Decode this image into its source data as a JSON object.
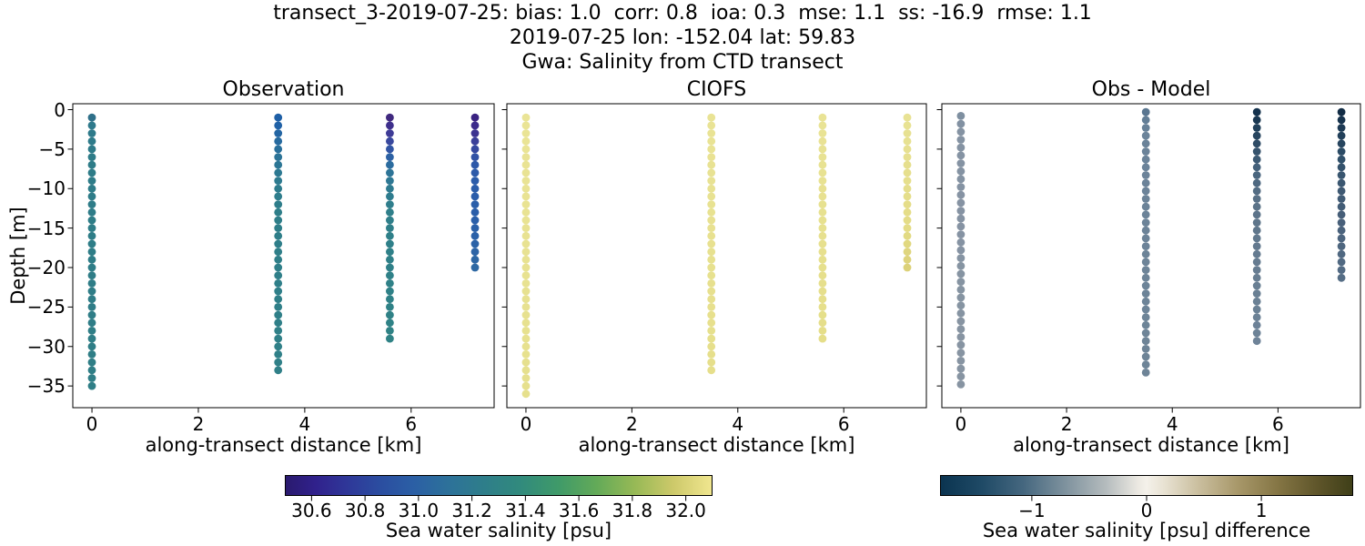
{
  "header": {
    "line1": "transect_3-2019-07-25: bias: 1.0  corr: 0.8  ioa: 0.3  mse: 1.1  ss: -16.9  rmse: 1.1",
    "line2": "2019-07-25 lon: -152.04 lat: 59.83",
    "line3": "Gwa: Salinity from CTD transect"
  },
  "axes": {
    "ylabel": "Depth [m]",
    "x_ticks": [
      0,
      2,
      4,
      6
    ],
    "x_tick_labels": [
      "0",
      "2",
      "4",
      "6"
    ],
    "y_ticks": [
      0,
      -5,
      -10,
      -15,
      -20,
      -25,
      -30,
      -35
    ],
    "y_tick_labels": [
      "0",
      "−5",
      "−10",
      "−15",
      "−20",
      "−25",
      "−30",
      "−35"
    ],
    "xlim": [
      -0.36,
      7.56
    ],
    "ylim": [
      0.75,
      -37.75
    ]
  },
  "chart_data": [
    {
      "type": "scatter",
      "title": "Observation",
      "xlabel": "along-transect distance [km]",
      "ylabel": "Depth [m]",
      "units": "psu",
      "point_spacing_m": 1,
      "profiles": [
        {
          "x_km": 0.0,
          "top_depth": -1,
          "bottom_depth": -35,
          "stops": [
            {
              "d": -1,
              "v": 31.15,
              "c": "#2f7089"
            },
            {
              "d": -2,
              "v": 31.2,
              "c": "#2e798b"
            },
            {
              "d": -6,
              "v": 31.25,
              "c": "#2e7c88"
            },
            {
              "d": -35,
              "v": 31.26,
              "c": "#2f7e86"
            }
          ]
        },
        {
          "x_km": 3.5,
          "top_depth": -1,
          "bottom_depth": -33,
          "stops": [
            {
              "d": -1,
              "v": 31.0,
              "c": "#1e5fa6"
            },
            {
              "d": -2,
              "v": 31.02,
              "c": "#2061a6"
            },
            {
              "d": -3,
              "v": 31.05,
              "c": "#2365a3"
            },
            {
              "d": -4,
              "v": 31.08,
              "c": "#276a9f"
            },
            {
              "d": -5,
              "v": 31.1,
              "c": "#296f9b"
            },
            {
              "d": -6,
              "v": 31.12,
              "c": "#2b7397"
            },
            {
              "d": -8,
              "v": 31.17,
              "c": "#2d7992"
            },
            {
              "d": -10,
              "v": 31.2,
              "c": "#2e7c8d"
            },
            {
              "d": -13,
              "v": 31.22,
              "c": "#2e7e89"
            },
            {
              "d": -33,
              "v": 31.25,
              "c": "#308088"
            }
          ]
        },
        {
          "x_km": 5.6,
          "top_depth": -1,
          "bottom_depth": -29,
          "stops": [
            {
              "d": -1,
              "v": 30.58,
              "c": "#40297f"
            },
            {
              "d": -2,
              "v": 30.62,
              "c": "#3e2f8c"
            },
            {
              "d": -3,
              "v": 30.67,
              "c": "#3e3b96"
            },
            {
              "d": -4,
              "v": 30.73,
              "c": "#39489e"
            },
            {
              "d": -5,
              "v": 30.8,
              "c": "#3155a4"
            },
            {
              "d": -6,
              "v": 30.88,
              "c": "#2c61a4"
            },
            {
              "d": -7,
              "v": 30.98,
              "c": "#2b6c9f"
            },
            {
              "d": -8,
              "v": 31.05,
              "c": "#2d7497"
            },
            {
              "d": -10,
              "v": 31.15,
              "c": "#2e7b90"
            },
            {
              "d": -13,
              "v": 31.22,
              "c": "#2f7f8a"
            },
            {
              "d": -29,
              "v": 31.28,
              "c": "#2f8285"
            }
          ]
        },
        {
          "x_km": 7.2,
          "top_depth": -1,
          "bottom_depth": -20,
          "stops": [
            {
              "d": -1,
              "v": 30.55,
              "c": "#3a2382"
            },
            {
              "d": -2,
              "v": 30.6,
              "c": "#3c2b8b"
            },
            {
              "d": -3,
              "v": 30.64,
              "c": "#3c3391"
            },
            {
              "d": -4,
              "v": 30.68,
              "c": "#3a3f99"
            },
            {
              "d": -5,
              "v": 30.73,
              "c": "#35489f"
            },
            {
              "d": -6,
              "v": 30.78,
              "c": "#3152a5"
            },
            {
              "d": -7,
              "v": 30.83,
              "c": "#2d58a8"
            },
            {
              "d": -9,
              "v": 30.88,
              "c": "#2a5caa"
            },
            {
              "d": -14,
              "v": 30.9,
              "c": "#2a5fa9"
            },
            {
              "d": -17,
              "v": 30.93,
              "c": "#2b62a7"
            },
            {
              "d": -20,
              "v": 30.97,
              "c": "#2d68a3"
            }
          ]
        }
      ]
    },
    {
      "type": "scatter",
      "title": "CIOFS",
      "xlabel": "along-transect distance [km]",
      "ylabel": "Depth [m]",
      "units": "psu",
      "point_spacing_m": 1,
      "profiles": [
        {
          "x_km": 0.0,
          "top_depth": -1,
          "bottom_depth": -36,
          "stops": [
            {
              "d": -1,
              "v": 32.05,
              "c": "#eae496"
            },
            {
              "d": -36,
              "v": 32.0,
              "c": "#e6e08d"
            }
          ]
        },
        {
          "x_km": 3.5,
          "top_depth": -1,
          "bottom_depth": -33,
          "stops": [
            {
              "d": -1,
              "v": 32.05,
              "c": "#e9e395"
            },
            {
              "d": -33,
              "v": 32.0,
              "c": "#e6df8b"
            }
          ]
        },
        {
          "x_km": 5.6,
          "top_depth": -1,
          "bottom_depth": -29,
          "stops": [
            {
              "d": -1,
              "v": 32.05,
              "c": "#e9e395"
            },
            {
              "d": -29,
              "v": 32.0,
              "c": "#e5de89"
            }
          ]
        },
        {
          "x_km": 7.2,
          "top_depth": -1,
          "bottom_depth": -20,
          "stops": [
            {
              "d": -1,
              "v": 32.05,
              "c": "#e8e294"
            },
            {
              "d": -15,
              "v": 32.0,
              "c": "#e4dc86"
            },
            {
              "d": -20,
              "v": 31.95,
              "c": "#dcd178"
            }
          ]
        }
      ]
    },
    {
      "type": "scatter",
      "title": "Obs - Model",
      "xlabel": "along-transect distance [km]",
      "ylabel": "Depth [m]",
      "units": "psu difference",
      "point_spacing_m": 1,
      "profiles": [
        {
          "x_km": 0.0,
          "top_depth": -0.8,
          "bottom_depth": -34.8,
          "stops": [
            {
              "d": -0.8,
              "v": -0.5,
              "c": "#7e8fa0"
            },
            {
              "d": -2.8,
              "v": -0.45,
              "c": "#8593a3"
            },
            {
              "d": -34.8,
              "v": -0.45,
              "c": "#8794a2"
            }
          ]
        },
        {
          "x_km": 3.5,
          "top_depth": -0.3,
          "bottom_depth": -33.3,
          "stops": [
            {
              "d": -0.3,
              "v": -0.6,
              "c": "#5a7690"
            },
            {
              "d": -1.3,
              "v": -0.55,
              "c": "#637e96"
            },
            {
              "d": -3.3,
              "v": -0.52,
              "c": "#6b8399"
            },
            {
              "d": -33.3,
              "v": -0.5,
              "c": "#6e8497"
            }
          ]
        },
        {
          "x_km": 5.6,
          "top_depth": -0.3,
          "bottom_depth": -29.3,
          "stops": [
            {
              "d": -0.3,
              "v": -1.55,
              "c": "#14324d"
            },
            {
              "d": -1.3,
              "v": -1.5,
              "c": "#1a3852"
            },
            {
              "d": -2.3,
              "v": -1.45,
              "c": "#21405a"
            },
            {
              "d": -4.3,
              "v": -1.3,
              "c": "#2f4c66"
            },
            {
              "d": -7.3,
              "v": -1.1,
              "c": "#44617b"
            },
            {
              "d": -11.3,
              "v": -0.85,
              "c": "#597187"
            },
            {
              "d": -17.3,
              "v": -0.7,
              "c": "#647a8f"
            },
            {
              "d": -23.3,
              "v": -0.6,
              "c": "#6a8094"
            },
            {
              "d": -29.3,
              "v": -0.55,
              "c": "#6e8398"
            }
          ]
        },
        {
          "x_km": 7.2,
          "top_depth": -0.3,
          "bottom_depth": -21.3,
          "stops": [
            {
              "d": -0.3,
              "v": -1.65,
              "c": "#122c45"
            },
            {
              "d": -1.3,
              "v": -1.6,
              "c": "#17334d"
            },
            {
              "d": -3.3,
              "v": -1.45,
              "c": "#22405a"
            },
            {
              "d": -6.3,
              "v": -1.25,
              "c": "#30506a"
            },
            {
              "d": -10.3,
              "v": -1.1,
              "c": "#3f5973"
            },
            {
              "d": -15.3,
              "v": -0.95,
              "c": "#4a627c"
            },
            {
              "d": -21.3,
              "v": -0.8,
              "c": "#556d85"
            }
          ]
        }
      ]
    }
  ],
  "colorbars": [
    {
      "label": "Sea water salinity [psu]",
      "min": 30.5,
      "max": 32.1,
      "ticks": [
        30.6,
        30.8,
        31.0,
        31.2,
        31.4,
        31.6,
        31.8,
        32.0
      ],
      "tick_labels": [
        "30.6",
        "30.8",
        "31.0",
        "31.2",
        "31.4",
        "31.6",
        "31.8",
        "32.0"
      ],
      "gradient": [
        {
          "at": 0,
          "c": "#2a1a6e"
        },
        {
          "at": 0.07,
          "c": "#30218c"
        },
        {
          "at": 0.14,
          "c": "#2f3698"
        },
        {
          "at": 0.22,
          "c": "#2b4da0"
        },
        {
          "at": 0.3,
          "c": "#2b5fa5"
        },
        {
          "at": 0.38,
          "c": "#2d719a"
        },
        {
          "at": 0.46,
          "c": "#2e7d8b"
        },
        {
          "at": 0.55,
          "c": "#318a7d"
        },
        {
          "at": 0.64,
          "c": "#3f9a69"
        },
        {
          "at": 0.73,
          "c": "#63aa58"
        },
        {
          "at": 0.82,
          "c": "#97b956"
        },
        {
          "at": 0.91,
          "c": "#cdc96a"
        },
        {
          "at": 1,
          "c": "#f0e68f"
        }
      ]
    },
    {
      "label": "Sea water salinity [psu] difference",
      "min": -1.8,
      "max": 1.8,
      "ticks": [
        -1,
        0,
        1
      ],
      "tick_labels": [
        "−1",
        "0",
        "1"
      ],
      "gradient": [
        {
          "at": 0,
          "c": "#0b3450"
        },
        {
          "at": 0.1,
          "c": "#1f4a66"
        },
        {
          "at": 0.2,
          "c": "#45677f"
        },
        {
          "at": 0.3,
          "c": "#7d919d"
        },
        {
          "at": 0.4,
          "c": "#b4bbbd"
        },
        {
          "at": 0.48,
          "c": "#ece9e2"
        },
        {
          "at": 0.5,
          "c": "#f4f1ea"
        },
        {
          "at": 0.54,
          "c": "#e9e3d4"
        },
        {
          "at": 0.62,
          "c": "#ccc1a2"
        },
        {
          "at": 0.72,
          "c": "#a8986a"
        },
        {
          "at": 0.82,
          "c": "#847544"
        },
        {
          "at": 0.92,
          "c": "#5d5429"
        },
        {
          "at": 1,
          "c": "#3f3f18"
        }
      ]
    }
  ]
}
